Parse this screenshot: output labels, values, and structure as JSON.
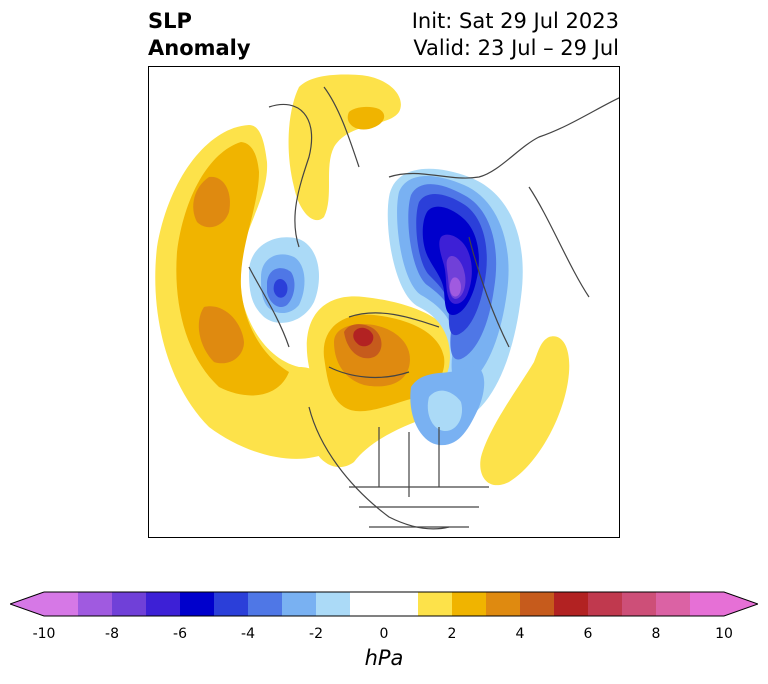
{
  "header": {
    "title_line1": "SLP",
    "title_line2": "Anomaly",
    "init_text": "Init: Sat 29 Jul 2023",
    "valid_text": "Valid: 23 Jul – 29 Jul"
  },
  "map": {
    "projection": "north-polar-stereographic",
    "field": "sea-level-pressure-anomaly",
    "features": [
      "coastlines",
      "country-borders",
      "us-state-borders",
      "canadian-provinces"
    ]
  },
  "colorbar": {
    "unit": "hPa",
    "extend": "both",
    "ticks": [
      "-10",
      "-8",
      "-6",
      "-4",
      "-2",
      "0",
      "2",
      "4",
      "6",
      "8",
      "10"
    ],
    "levels": [
      -10,
      -9,
      -8,
      -7,
      -6,
      -5,
      -4,
      -3,
      -2,
      -1,
      1,
      2,
      3,
      4,
      5,
      6,
      7,
      8,
      9,
      10
    ],
    "colors": [
      "#d678e6",
      "#a05ae0",
      "#7040d8",
      "#3d20d6",
      "#0000cc",
      "#2b3fd9",
      "#4f77e6",
      "#79b1f2",
      "#abdaf7",
      "#ffffff",
      "#fde24a",
      "#f0b400",
      "#df8a10",
      "#c65b1c",
      "#b22222",
      "#c0394e",
      "#cd4f78",
      "#db62a4",
      "#e670d6"
    ],
    "under_color": "#d678e6",
    "over_color": "#e670d6"
  }
}
